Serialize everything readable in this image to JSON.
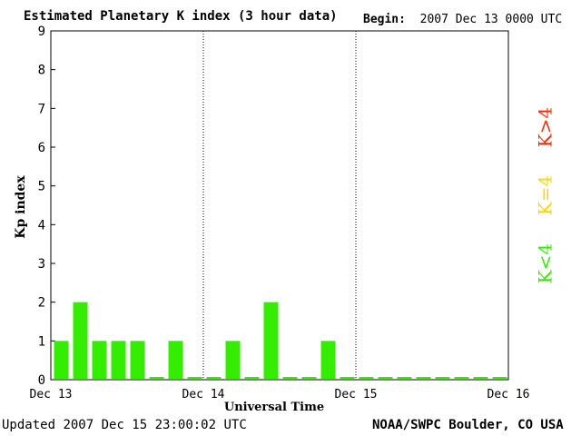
{
  "header": {
    "title": "Estimated Planetary K index (3 hour data)",
    "begin_label": "Begin:",
    "begin_value": "2007 Dec 13 0000 UTC"
  },
  "footer": {
    "updated_label": "Updated",
    "updated_value": "2007 Dec 15 23:00:02 UTC",
    "source": "NOAA/SWPC Boulder, CO USA"
  },
  "legend": [
    {
      "label": "K>4",
      "color": "#ff2a00"
    },
    {
      "label": "K=4",
      "color": "#ffd400"
    },
    {
      "label": "K<4",
      "color": "#33ee00"
    }
  ],
  "chart_data": {
    "type": "bar",
    "title": "Estimated Planetary K index (3 hour data)",
    "xlabel": "Universal Time",
    "ylabel": "Kp index",
    "ylim": [
      0,
      9
    ],
    "yticks": [
      "0",
      "1",
      "2",
      "3",
      "4",
      "5",
      "6",
      "7",
      "8",
      "9"
    ],
    "xticks": [
      "Dec 13",
      "Dec 14",
      "Dec 15",
      "Dec 16"
    ],
    "bar_color": "#33ee00",
    "values": [
      1,
      2,
      1,
      1,
      1,
      0,
      1,
      0,
      0,
      1,
      0,
      2,
      0,
      0,
      1,
      0,
      0,
      0,
      0,
      0,
      0,
      0,
      0,
      0
    ]
  }
}
